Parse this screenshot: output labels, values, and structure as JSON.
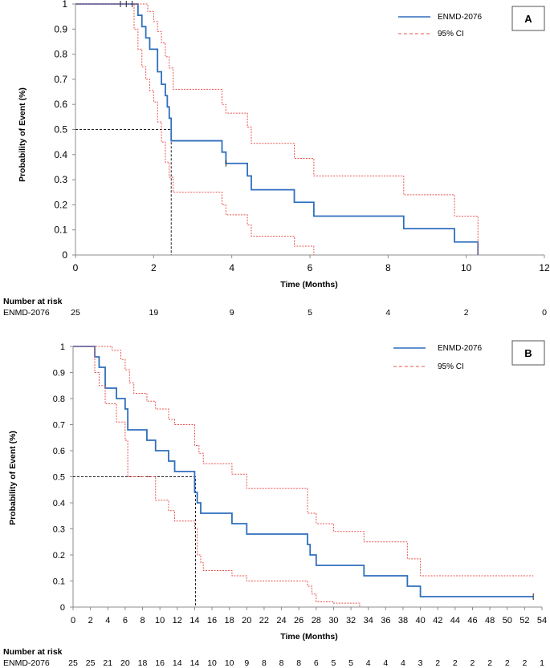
{
  "chart_data": [
    {
      "type": "line",
      "panel_label": "A",
      "xlabel": "Time (Months)",
      "ylabel": "Probability of Event (%)",
      "xlim": [
        0,
        12
      ],
      "ylim": [
        0,
        1
      ],
      "xticks": [
        "0",
        "2",
        "4",
        "6",
        "8",
        "10",
        "12"
      ],
      "yticks": [
        "0",
        "0.1",
        "0.2",
        "0.3",
        "0.4",
        "0.5",
        "0.6",
        "0.7",
        "0.8",
        "0.9",
        "1"
      ],
      "legend": {
        "position": "top-right",
        "entries": [
          "ENMD-2076",
          "95% CI"
        ]
      },
      "median_line": {
        "y": 0.5,
        "x": 2.45
      },
      "series": [
        {
          "name": "ENMD-2076",
          "color": "#2f6fbd",
          "style": "solid",
          "x": [
            0,
            1.6,
            1.7,
            1.8,
            1.9,
            2.1,
            2.2,
            2.3,
            2.35,
            2.4,
            2.45,
            3.75,
            3.85,
            4.4,
            4.5,
            5.6,
            6.1,
            8.4,
            9.7,
            10.3
          ],
          "y": [
            1,
            0.955,
            0.91,
            0.865,
            0.82,
            0.73,
            0.68,
            0.635,
            0.59,
            0.545,
            0.455,
            0.41,
            0.365,
            0.315,
            0.26,
            0.21,
            0.155,
            0.105,
            0.052,
            0
          ]
        },
        {
          "name": "95% CI",
          "color": "#e8534f",
          "style": "dashed",
          "x": [
            0,
            1.85,
            2.0,
            2.1,
            2.2,
            2.3,
            2.4,
            2.5,
            3.75,
            3.85,
            4.4,
            4.5,
            5.6,
            6.1,
            8.4,
            9.7,
            10.3
          ],
          "y": [
            1,
            0.97,
            0.93,
            0.89,
            0.845,
            0.79,
            0.745,
            0.66,
            0.6,
            0.565,
            0.51,
            0.445,
            0.385,
            0.315,
            0.24,
            0.155,
            0
          ]
        },
        {
          "name": "95% CI lower",
          "color": "#e8534f",
          "style": "dashed",
          "x": [
            0,
            1.5,
            1.6,
            1.7,
            1.8,
            1.9,
            2.0,
            2.1,
            2.2,
            2.3,
            2.4,
            2.5,
            3.75,
            3.85,
            4.4,
            4.5,
            5.6,
            6.1
          ],
          "y": [
            1,
            0.9,
            0.82,
            0.75,
            0.7,
            0.655,
            0.61,
            0.53,
            0.45,
            0.37,
            0.31,
            0.25,
            0.2,
            0.16,
            0.12,
            0.075,
            0.035,
            0
          ]
        }
      ],
      "censor_marks": [
        [
          1.15,
          1
        ],
        [
          1.3,
          1
        ],
        [
          1.45,
          1
        ],
        [
          3.85,
          0.365
        ]
      ],
      "risk_table": {
        "header": "Number at risk",
        "row_label": "ENMD-2076",
        "times": [
          0,
          2,
          4,
          6,
          8,
          10,
          12
        ],
        "values": [
          "25",
          "19",
          "9",
          "5",
          "4",
          "2",
          "0"
        ]
      }
    },
    {
      "type": "line",
      "panel_label": "B",
      "xlabel": "Time (Months)",
      "ylabel": "Probability of Event (%)",
      "xlim": [
        0,
        54
      ],
      "ylim": [
        0,
        1
      ],
      "xticks": [
        "0",
        "2",
        "4",
        "6",
        "8",
        "10",
        "12",
        "14",
        "16",
        "18",
        "20",
        "22",
        "24",
        "26",
        "28",
        "30",
        "32",
        "34",
        "36",
        "38",
        "40",
        "42",
        "44",
        "46",
        "48",
        "50",
        "52",
        "54"
      ],
      "yticks": [
        "0",
        "0.1",
        "0.2",
        "0.3",
        "0.4",
        "0.5",
        "0.6",
        "0.7",
        "0.8",
        "0.9",
        "1"
      ],
      "legend": {
        "position": "top-right",
        "entries": [
          "ENMD-2076",
          "95% CI"
        ]
      },
      "median_line": {
        "y": 0.5,
        "x": 14.1
      },
      "series": [
        {
          "name": "ENMD-2076",
          "color": "#2f6fbd",
          "style": "solid",
          "x": [
            0,
            2.5,
            3.0,
            3.7,
            5.0,
            6.0,
            6.3,
            8.5,
            9.5,
            11.0,
            11.7,
            14.0,
            14.3,
            14.7,
            15.0,
            18.3,
            20.0,
            27.0,
            27.3,
            28.0,
            30.0,
            33.5,
            38.5,
            40.0,
            53.0
          ],
          "y": [
            1,
            0.96,
            0.92,
            0.84,
            0.8,
            0.76,
            0.68,
            0.64,
            0.6,
            0.56,
            0.52,
            0.44,
            0.4,
            0.36,
            0.36,
            0.32,
            0.28,
            0.24,
            0.2,
            0.16,
            0.16,
            0.12,
            0.08,
            0.04,
            0.04
          ]
        },
        {
          "name": "95% CI",
          "color": "#e8534f",
          "style": "dashed",
          "x": [
            0,
            4.5,
            5.5,
            6.0,
            6.5,
            7.0,
            8.5,
            9.5,
            11.0,
            11.7,
            14.0,
            14.5,
            15.0,
            18.3,
            20.0,
            27.0,
            28.0,
            30.0,
            33.5,
            38.5,
            40.0,
            53.0
          ],
          "y": [
            1,
            0.985,
            0.95,
            0.91,
            0.86,
            0.82,
            0.79,
            0.76,
            0.72,
            0.7,
            0.62,
            0.59,
            0.55,
            0.51,
            0.455,
            0.36,
            0.32,
            0.29,
            0.25,
            0.185,
            0.12,
            0.12
          ]
        },
        {
          "name": "95% CI lower",
          "color": "#e8534f",
          "style": "dashed",
          "x": [
            0,
            2.5,
            3.0,
            3.7,
            5.0,
            6.0,
            6.3,
            8.5,
            9.5,
            11.0,
            11.7,
            14.0,
            14.3,
            14.7,
            15.0,
            18.3,
            20.0,
            27.0,
            27.5,
            28.0,
            30.0,
            33.0
          ],
          "y": [
            1,
            0.9,
            0.85,
            0.78,
            0.71,
            0.64,
            0.5,
            0.5,
            0.41,
            0.37,
            0.33,
            0.3,
            0.2,
            0.17,
            0.14,
            0.12,
            0.1,
            0.08,
            0.05,
            0.02,
            0.015,
            0
          ]
        }
      ],
      "censor_marks": [
        [
          53,
          0.04
        ]
      ],
      "risk_table": {
        "header": "Number at risk",
        "row_label": "ENMD-2076",
        "times": [
          0,
          2,
          4,
          6,
          8,
          10,
          12,
          14,
          16,
          18,
          20,
          22,
          24,
          26,
          28,
          30,
          32,
          34,
          36,
          38,
          40,
          42,
          44,
          46,
          48,
          50,
          52,
          54
        ],
        "values": [
          "25",
          "25",
          "21",
          "20",
          "18",
          "16",
          "14",
          "14",
          "10",
          "10",
          "9",
          "8",
          "8",
          "8",
          "6",
          "5",
          "5",
          "4",
          "4",
          "4",
          "3",
          "2",
          "2",
          "2",
          "2",
          "2",
          "2",
          "1"
        ]
      }
    }
  ]
}
